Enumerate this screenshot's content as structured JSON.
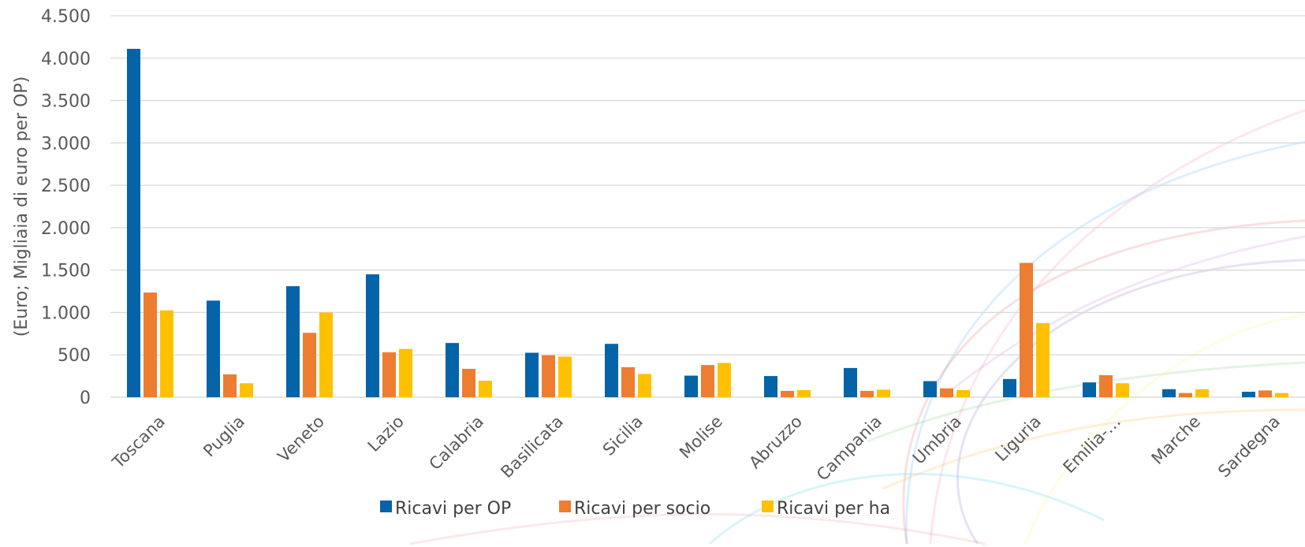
{
  "chart_data": {
    "type": "bar",
    "title": "",
    "xlabel": "",
    "ylabel": "(Euro; Migliaia di euro per OP)",
    "ylim": [
      0,
      4500
    ],
    "yticks": [
      0,
      500,
      1000,
      1500,
      2000,
      2500,
      3000,
      3500,
      4000,
      4500
    ],
    "ytick_labels": [
      "0",
      "500",
      "1.000",
      "1.500",
      "2.000",
      "2.500",
      "3.000",
      "3.500",
      "4.000",
      "4.500"
    ],
    "grid": true,
    "legend_position": "bottom",
    "categories": [
      "Toscana",
      "Puglia",
      "Veneto",
      "Lazio",
      "Calabria",
      "Basilicata",
      "Sicilia",
      "Molise",
      "Abruzzo",
      "Campania",
      "Umbria",
      "Liguria",
      "Emilia-…",
      "Marche",
      "Sardegna"
    ],
    "series": [
      {
        "name": "Ricavi per OP",
        "color": "#0563a8",
        "values": [
          4110,
          1140,
          1310,
          1450,
          640,
          525,
          630,
          255,
          250,
          345,
          190,
          215,
          175,
          95,
          65
        ]
      },
      {
        "name": "Ricavi per socio",
        "color": "#ed7d31",
        "values": [
          1235,
          270,
          760,
          530,
          335,
          495,
          355,
          380,
          75,
          75,
          105,
          1585,
          260,
          50,
          80
        ]
      },
      {
        "name": "Ricavi per ha",
        "color": "#ffc000",
        "values": [
          1025,
          165,
          1000,
          570,
          195,
          480,
          275,
          405,
          85,
          90,
          85,
          875,
          165,
          95,
          50
        ]
      }
    ]
  }
}
